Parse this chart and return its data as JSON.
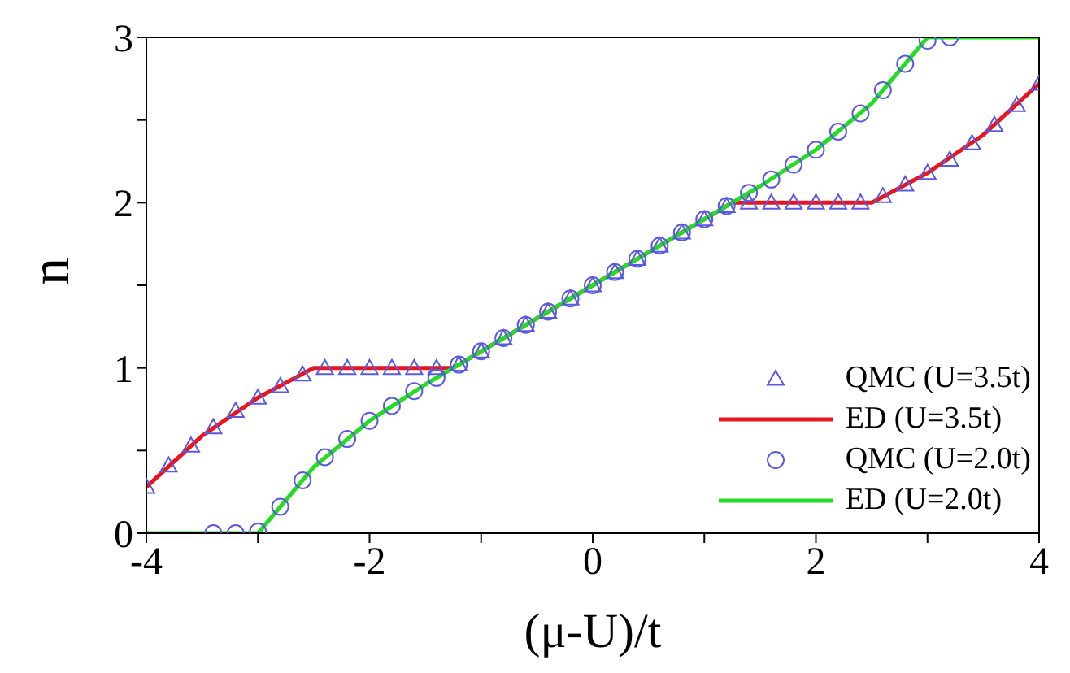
{
  "chart_data": {
    "type": "line",
    "xlabel": "(μ-U)/t",
    "ylabel": "n",
    "xlim": [
      -4,
      4
    ],
    "ylim": [
      0,
      3
    ],
    "xticks": [
      -4,
      {
        "value": -3,
        "label": null
      },
      -2,
      {
        "value": -1,
        "label": null
      },
      0,
      {
        "value": 1,
        "label": null
      },
      2,
      {
        "value": 3,
        "label": null
      },
      4
    ],
    "yticks": [
      0,
      {
        "value": 0.5,
        "label": null
      },
      1,
      {
        "value": 1.5,
        "label": null
      },
      2,
      {
        "value": 2.5,
        "label": null
      },
      3
    ],
    "legend": "bottom right",
    "series": [
      {
        "name": "QMC (U=3.5t)",
        "type": "scatter",
        "marker": "triangle",
        "color": "#5a5ae0",
        "x": [
          -4,
          -3.8,
          -3.6,
          -3.4,
          -3.2,
          -3,
          -2.8,
          -2.6,
          -2.4,
          -2.2,
          -2,
          -1.8,
          -1.6,
          -1.4,
          -1.2,
          -1,
          -0.8,
          -0.6,
          -0.4,
          -0.2,
          0,
          0.2,
          0.4,
          0.6,
          0.8,
          1,
          1.2,
          1.4,
          1.6,
          1.8,
          2,
          2.2,
          2.4,
          2.6,
          2.8,
          3,
          3.2,
          3.4,
          3.6,
          3.8,
          4
        ],
        "values": [
          0.28,
          0.41,
          0.53,
          0.64,
          0.74,
          0.82,
          0.89,
          0.96,
          1,
          1,
          1,
          1,
          1,
          1,
          1.02,
          1.1,
          1.18,
          1.26,
          1.34,
          1.42,
          1.5,
          1.58,
          1.66,
          1.74,
          1.82,
          1.9,
          1.98,
          2,
          2,
          2,
          2,
          2,
          2,
          2.04,
          2.11,
          2.18,
          2.26,
          2.36,
          2.47,
          2.59,
          2.72
        ]
      },
      {
        "name": "ED (U=3.5t)",
        "marker": "none",
        "line_style": "solid",
        "color": "#e8141e",
        "x": [
          -4,
          -3.5,
          -3,
          -2.5,
          -1.25,
          1.25,
          2.5,
          3,
          3.5,
          4
        ],
        "values": [
          0.28,
          0.59,
          0.82,
          1,
          1,
          2,
          2,
          2.18,
          2.41,
          2.72
        ]
      },
      {
        "name": "QMC (U=2.0t)",
        "type": "scatter",
        "marker": "circle",
        "color": "#5a5ae0",
        "x": [
          -3.4,
          -3.2,
          -3,
          -2.8,
          -2.6,
          -2.4,
          -2.2,
          -2,
          -1.8,
          -1.6,
          -1.4,
          -1.2,
          -1,
          -0.8,
          -0.6,
          -0.4,
          -0.2,
          0,
          0.2,
          0.4,
          0.6,
          0.8,
          1,
          1.2,
          1.4,
          1.6,
          1.8,
          2,
          2.2,
          2.4,
          2.6,
          2.8,
          3,
          3.2
        ],
        "values": [
          0,
          0,
          0.01,
          0.16,
          0.32,
          0.46,
          0.57,
          0.68,
          0.77,
          0.86,
          0.94,
          1.02,
          1.1,
          1.18,
          1.26,
          1.34,
          1.42,
          1.5,
          1.58,
          1.66,
          1.74,
          1.82,
          1.9,
          1.98,
          2.06,
          2.14,
          2.23,
          2.32,
          2.43,
          2.54,
          2.68,
          2.84,
          2.98,
          3
        ]
      },
      {
        "name": "ED (U=2.0t)",
        "marker": "none",
        "line_style": "solid",
        "color": "#22dd22",
        "x": [
          -4,
          -3,
          -2.75,
          -2.5,
          -2,
          -1.5,
          -1,
          -0.5,
          0,
          0.5,
          1,
          1.5,
          2,
          2.5,
          2.75,
          3,
          4
        ],
        "values": [
          0,
          0,
          0.2,
          0.4,
          0.68,
          0.9,
          1.1,
          1.3,
          1.5,
          1.7,
          1.9,
          2.1,
          2.32,
          2.6,
          2.8,
          3,
          3
        ]
      }
    ]
  }
}
